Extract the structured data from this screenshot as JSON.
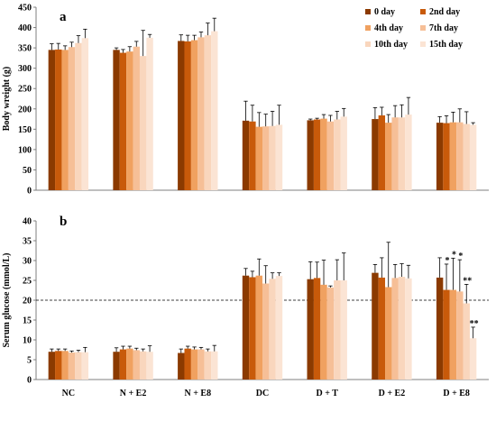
{
  "colors": {
    "series": [
      "#8b3a00",
      "#c85a0a",
      "#f0a160",
      "#f6bf97",
      "#f9d6bd",
      "#fbe4d4"
    ],
    "error_bar": "#000000",
    "axis": "#7f7f7f"
  },
  "chart_data": [
    {
      "type": "bar",
      "panel_label": "a",
      "ylabel": "Body wreight (g)",
      "ylim": [
        0,
        450
      ],
      "yticks": [
        0,
        50,
        100,
        150,
        200,
        250,
        300,
        350,
        400,
        450
      ],
      "legend_position": "top-right",
      "categories": [
        "NC",
        "N + E2",
        "N + E8",
        "DC",
        "D + T",
        "D + E2",
        "D + E8"
      ],
      "series": [
        {
          "name": "0 day",
          "values": [
            345,
            345,
            367,
            171,
            172,
            175,
            166
          ],
          "errors": [
            15,
            5,
            15,
            48,
            3,
            28,
            15
          ]
        },
        {
          "name": "2nd day",
          "values": [
            346,
            338,
            366,
            169,
            174,
            184,
            165
          ],
          "errors": [
            15,
            8,
            15,
            40,
            3,
            20,
            18
          ]
        },
        {
          "name": "4th day",
          "values": [
            345,
            341,
            369,
            156,
            176,
            166,
            167
          ],
          "errors": [
            10,
            12,
            12,
            35,
            10,
            20,
            25
          ]
        },
        {
          "name": "7th day",
          "values": [
            352,
            353,
            376,
            157,
            169,
            179,
            167
          ],
          "errors": [
            12,
            13,
            13,
            30,
            15,
            29,
            33
          ]
        },
        {
          "name": "10th day",
          "values": [
            362,
            330,
            381,
            158,
            174,
            179,
            163
          ],
          "errors": [
            18,
            63,
            30,
            36,
            20,
            31,
            30
          ]
        },
        {
          "name": "15th day",
          "values": [
            374,
            375,
            391,
            161,
            181,
            186,
            161
          ],
          "errors": [
            22,
            8,
            32,
            48,
            20,
            42,
            5
          ]
        }
      ],
      "annotations": []
    },
    {
      "type": "bar",
      "panel_label": "b",
      "ylabel": "Serum glucose (mmol/L)",
      "ylim": [
        0,
        40
      ],
      "yticks": [
        0,
        5,
        10,
        15,
        20,
        25,
        30,
        35,
        40
      ],
      "reference_line": 20,
      "categories": [
        "NC",
        "N + E2",
        "N + E8",
        "DC",
        "D + T",
        "D + E2",
        "D + E8"
      ],
      "series": [
        {
          "name": "0 day",
          "values": [
            7.0,
            7.0,
            6.7,
            26.2,
            25.3,
            26.9,
            25.7
          ],
          "errors": [
            0.7,
            1.0,
            1.0,
            1.8,
            4.4,
            2.1,
            5.0
          ]
        },
        {
          "name": "2nd day",
          "values": [
            7.2,
            7.6,
            7.8,
            25.8,
            25.6,
            25.7,
            22.6
          ],
          "errors": [
            0.5,
            0.8,
            0.6,
            1.5,
            4.0,
            5.0,
            6.5
          ]
        },
        {
          "name": "4th day",
          "values": [
            7.2,
            7.8,
            7.6,
            26.2,
            23.9,
            23.3,
            22.6
          ],
          "errors": [
            0.5,
            0.6,
            0.6,
            4.2,
            6.2,
            11.3,
            8.0
          ]
        },
        {
          "name": "7th day",
          "values": [
            6.8,
            7.4,
            7.6,
            24.2,
            23.2,
            25.6,
            22.2
          ],
          "errors": [
            0.4,
            0.5,
            0.5,
            4.5,
            0.4,
            3.4,
            8.0
          ]
        },
        {
          "name": "10th day",
          "values": [
            6.9,
            7.1,
            7.1,
            25.4,
            25.0,
            25.9,
            19.2
          ],
          "errors": [
            0.5,
            0.6,
            0.6,
            1.5,
            5.2,
            3.3,
            4.8
          ]
        },
        {
          "name": "15th day",
          "values": [
            6.9,
            7.0,
            7.1,
            26.1,
            25.0,
            25.5,
            10.4
          ],
          "errors": [
            1.2,
            1.5,
            1.5,
            0.8,
            6.9,
            3.3,
            2.8
          ]
        }
      ],
      "annotations": [
        {
          "category": "D + E8",
          "series": "2nd day",
          "text": "*"
        },
        {
          "category": "D + E8",
          "series": "4th day",
          "text": "*"
        },
        {
          "category": "D + E8",
          "series": "7th day",
          "text": "*"
        },
        {
          "category": "D + E8",
          "series": "10th day",
          "text": "**"
        },
        {
          "category": "D + E8",
          "series": "15th day",
          "text": "**"
        }
      ]
    }
  ]
}
